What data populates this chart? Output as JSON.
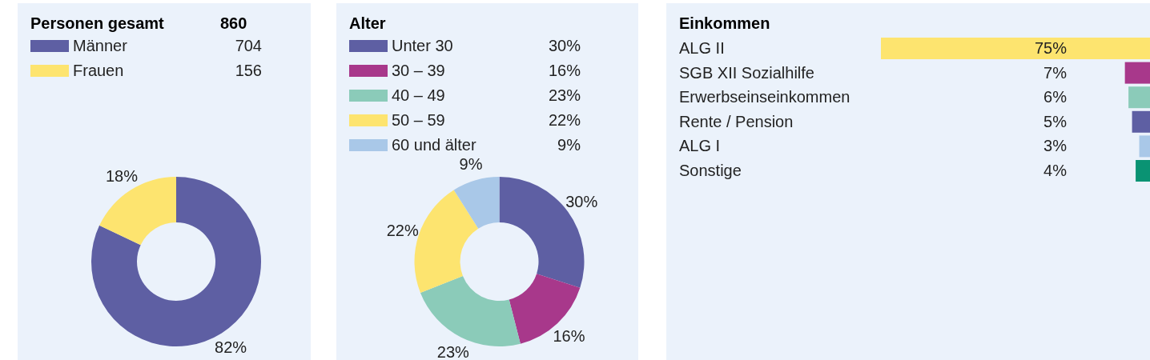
{
  "chart_data": [
    {
      "type": "donut",
      "title": "Personen gesamt",
      "annotations": [
        "860",
        "704",
        "156"
      ],
      "categories": [
        "Männer",
        "Frauen"
      ],
      "values": [
        82,
        18
      ],
      "value_labels": [
        "82%",
        "18%"
      ],
      "colors": [
        "#5e5fa3",
        "#fde46f"
      ],
      "legend": "top left"
    },
    {
      "type": "donut",
      "title": "Alter",
      "categories": [
        "Unter 30",
        "30 – 39",
        "40 – 49",
        "50 – 59",
        "60 und älter"
      ],
      "values": [
        30,
        16,
        23,
        22,
        9
      ],
      "value_labels": [
        "30%",
        "16%",
        "23%",
        "22%",
        "9%"
      ],
      "colors": [
        "#5e5fa3",
        "#a8388b",
        "#8bcbb9",
        "#fde46f",
        "#a9c8e8"
      ],
      "legend": "top left"
    },
    {
      "type": "bar",
      "orientation": "horizontal",
      "title": "Einkommen",
      "categories": [
        "ALG II",
        "SGB XII Sozialhilfe",
        "Erwerbseinseinkommen",
        "Rente / Pension",
        "ALG I",
        "Sonstige"
      ],
      "values": [
        75,
        7,
        6,
        5,
        3,
        4
      ],
      "value_labels": [
        "75%",
        "7%",
        "6%",
        "5%",
        "3%",
        "4%"
      ],
      "colors": [
        "#fde46f",
        "#a8388b",
        "#8bcbb9",
        "#5e5fa3",
        "#a9c8e8",
        "#0a9373"
      ]
    }
  ]
}
